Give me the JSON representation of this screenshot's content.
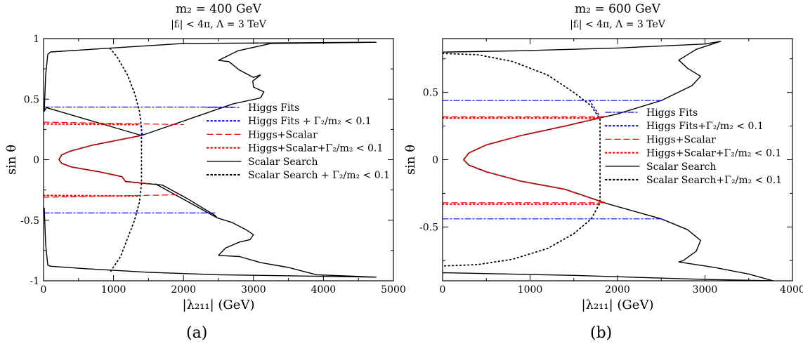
{
  "figure": {
    "caption_a": "(a)",
    "caption_b": "(b)"
  },
  "chart_data": [
    {
      "id": "a",
      "type": "line",
      "title_main": "m₂ = 400 GeV",
      "title_sub": "|fᵢ| < 4π, Λ = 3 TeV",
      "xlabel": "|λ₂₁₁| (GeV)",
      "ylabel": "sin θ",
      "xlim": [
        0,
        5000
      ],
      "ylim": [
        -1,
        1
      ],
      "xticks": [
        "0",
        "1000",
        "2000",
        "3000",
        "4000",
        "5000"
      ],
      "yticks": [
        "-1",
        "-0.5",
        "0",
        "0.5",
        "1"
      ],
      "grid": false,
      "legend_position": "right",
      "legend": [
        {
          "label": "Higgs Fits",
          "style": "dashdot",
          "color": "#0000ff"
        },
        {
          "label": "Higgs Fits + Γ₂/m₂ < 0.1",
          "style": "dotted",
          "color": "#0000ff"
        },
        {
          "label": "Higgs+Scalar",
          "style": "dashed",
          "color": "#ff0000"
        },
        {
          "label": "Higgs+Scalar+Γ₂/m₂ < 0.1",
          "style": "dotted",
          "color": "#ff0000"
        },
        {
          "label": "Scalar Search",
          "style": "solid",
          "color": "#000000"
        },
        {
          "label": "Scalar Search + Γ₂/m₂ < 0.1",
          "style": "dotted",
          "color": "#000000"
        }
      ],
      "series": [
        {
          "name": "Scalar Search",
          "style": "solid",
          "color": "#000000",
          "width": 1.4,
          "points": [
            [
              4750,
              0.97
            ],
            [
              2000,
              0.96
            ],
            [
              100,
              0.89
            ],
            [
              60,
              0.87
            ],
            [
              30,
              0.7
            ],
            [
              10,
              0.4
            ],
            [
              40,
              0.43
            ],
            [
              1400,
              0.2
            ],
            [
              700,
              0.12
            ],
            [
              380,
              0.07
            ],
            [
              260,
              0.04
            ],
            [
              220,
              0.0
            ],
            [
              260,
              -0.03
            ],
            [
              400,
              -0.06
            ],
            [
              800,
              -0.1
            ],
            [
              1120,
              -0.14
            ],
            [
              1170,
              -0.18
            ],
            [
              1700,
              -0.21
            ],
            [
              2050,
              -0.32
            ],
            [
              2450,
              -0.46
            ],
            [
              2480,
              -0.48
            ],
            [
              1600,
              -0.2
            ]
          ]
        },
        {
          "name": "Scalar Search (outer)",
          "style": "solid",
          "color": "#000000",
          "width": 1.4,
          "points": [
            [
              4750,
              0.97
            ],
            [
              3250,
              0.96
            ],
            [
              2780,
              0.9
            ],
            [
              2500,
              0.82
            ],
            [
              2650,
              0.81
            ],
            [
              2800,
              0.74
            ],
            [
              3000,
              0.68
            ],
            [
              3100,
              0.7
            ],
            [
              2990,
              0.65
            ],
            [
              3000,
              0.6
            ],
            [
              3150,
              0.56
            ],
            [
              3100,
              0.51
            ],
            [
              2700,
              0.46
            ],
            [
              1500,
              0.22
            ],
            [
              1400,
              0.2
            ]
          ]
        },
        {
          "name": "Scalar Search (outer lower)",
          "style": "solid",
          "color": "#000000",
          "width": 1.4,
          "points": [
            [
              2480,
              -0.48
            ],
            [
              2700,
              -0.52
            ],
            [
              2900,
              -0.58
            ],
            [
              3000,
              -0.62
            ],
            [
              2950,
              -0.66
            ],
            [
              2800,
              -0.68
            ],
            [
              2600,
              -0.73
            ],
            [
              2500,
              -0.79
            ],
            [
              2800,
              -0.8
            ],
            [
              3100,
              -0.85
            ],
            [
              3500,
              -0.89
            ],
            [
              3900,
              -0.95
            ],
            [
              4750,
              -0.97
            ]
          ]
        },
        {
          "name": "Scalar Search (bottom)",
          "style": "solid",
          "color": "#000000",
          "width": 1.4,
          "points": [
            [
              10,
              -0.4
            ],
            [
              30,
              -0.7
            ],
            [
              60,
              -0.87
            ],
            [
              100,
              -0.88
            ],
            [
              600,
              -0.9
            ],
            [
              1500,
              -0.93
            ],
            [
              2500,
              -0.95
            ],
            [
              4750,
              -0.97
            ]
          ]
        },
        {
          "name": "Scalar Search + Γ₂/m₂ < 0.1",
          "style": "dotted",
          "color": "#000000",
          "width": 1.8,
          "points": [
            [
              950,
              0.92
            ],
            [
              1050,
              0.85
            ],
            [
              1200,
              0.7
            ],
            [
              1300,
              0.55
            ],
            [
              1370,
              0.4
            ],
            [
              1400,
              0.27
            ],
            [
              1400,
              -0.2
            ],
            [
              1370,
              -0.35
            ],
            [
              1300,
              -0.5
            ],
            [
              1200,
              -0.65
            ],
            [
              1100,
              -0.8
            ],
            [
              950,
              -0.93
            ]
          ]
        },
        {
          "name": "Higgs Fits",
          "style": "dashdot",
          "color": "#0000ff",
          "width": 1.2,
          "points": [
            [
              0,
              0.435
            ],
            [
              2700,
              0.435
            ]
          ]
        },
        {
          "name": "Higgs Fits (lower)",
          "style": "dashdot",
          "color": "#0000ff",
          "width": 1.2,
          "points": [
            [
              0,
              -0.44
            ],
            [
              2450,
              -0.44
            ]
          ]
        },
        {
          "name": "Higgs Fits + Γ₂/m₂ < 0.1",
          "style": "dotted",
          "color": "#0000ff",
          "width": 1.8,
          "points": [
            [
              1390,
              0.28
            ],
            [
              1410,
              0.22
            ],
            [
              1420,
              0.19
            ]
          ]
        },
        {
          "name": "Higgs+Scalar",
          "style": "dashed",
          "color": "#ff0000",
          "width": 1.2,
          "points": [
            [
              0,
              0.31
            ],
            [
              2000,
              0.29
            ]
          ]
        },
        {
          "name": "Higgs+Scalar (lower)",
          "style": "dashed",
          "color": "#ff0000",
          "width": 1.2,
          "points": [
            [
              0,
              -0.31
            ],
            [
              1900,
              -0.29
            ]
          ]
        },
        {
          "name": "Higgs+Scalar+Γ₂/m₂ < 0.1",
          "style": "dotted",
          "color": "#ff0000",
          "width": 2.2,
          "points": [
            [
              0,
              0.295
            ],
            [
              1350,
              0.29
            ]
          ]
        },
        {
          "name": "Higgs+Scalar+Γ₂/m₂ < 0.1 (lower)",
          "style": "dotted",
          "color": "#ff0000",
          "width": 2.2,
          "points": [
            [
              0,
              -0.295
            ],
            [
              1350,
              -0.3
            ]
          ]
        },
        {
          "name": "Higgs+Scalar+Γ₂/m₂ < 0.1 (curve)",
          "style": "dotted",
          "color": "#ff0000",
          "width": 2.0,
          "points": [
            [
              1400,
              0.2
            ],
            [
              700,
              0.12
            ],
            [
              380,
              0.07
            ],
            [
              260,
              0.04
            ],
            [
              220,
              0.0
            ],
            [
              260,
              -0.03
            ],
            [
              400,
              -0.06
            ],
            [
              800,
              -0.1
            ],
            [
              1120,
              -0.14
            ],
            [
              1170,
              -0.18
            ],
            [
              1500,
              -0.2
            ]
          ]
        }
      ]
    },
    {
      "id": "b",
      "type": "line",
      "title_main": "m₂ = 600 GeV",
      "title_sub": "|fᵢ| < 4π, Λ = 3 TeV",
      "xlabel": "|λ₂₁₁| (GeV)",
      "ylabel": "sin θ",
      "xlim": [
        0,
        4000
      ],
      "ylim": [
        -0.9,
        0.9
      ],
      "xticks": [
        "0",
        "1000",
        "2000",
        "3000",
        "4000"
      ],
      "yticks": [
        "-0.5",
        "0",
        "0.5"
      ],
      "grid": false,
      "legend_position": "right",
      "legend": [
        {
          "label": "Higgs Fits",
          "style": "dashdot",
          "color": "#0000ff"
        },
        {
          "label": "Higgs Fits+Γ₂/m₂ < 0.1",
          "style": "dotted",
          "color": "#0000ff"
        },
        {
          "label": "Higgs+Scalar",
          "style": "dashed",
          "color": "#ff0000"
        },
        {
          "label": "Higgs+Scalar+Γ₂/m₂ < 0.1",
          "style": "dotted",
          "color": "#ff0000"
        },
        {
          "label": "Scalar Search",
          "style": "solid",
          "color": "#000000"
        },
        {
          "label": "Scalar Search+Γ₂/m₂ < 0.1",
          "style": "dotted",
          "color": "#000000"
        }
      ],
      "series": [
        {
          "name": "Scalar Search",
          "style": "solid",
          "color": "#000000",
          "width": 1.4,
          "points": [
            [
              0,
              0.8
            ],
            [
              900,
              0.81
            ],
            [
              2000,
              0.83
            ],
            [
              3000,
              0.86
            ],
            [
              3180,
              0.88
            ],
            [
              2900,
              0.82
            ],
            [
              2700,
              0.74
            ],
            [
              2800,
              0.68
            ],
            [
              2900,
              0.64
            ],
            [
              2950,
              0.62
            ],
            [
              2850,
              0.55
            ],
            [
              2500,
              0.44
            ],
            [
              2000,
              0.34
            ],
            [
              1400,
              0.25
            ],
            [
              900,
              0.18
            ],
            [
              500,
              0.11
            ],
            [
              300,
              0.05
            ],
            [
              240,
              0.0
            ],
            [
              300,
              -0.04
            ],
            [
              500,
              -0.09
            ],
            [
              900,
              -0.16
            ],
            [
              1400,
              -0.22
            ],
            [
              1900,
              -0.33
            ],
            [
              2500,
              -0.44
            ],
            [
              2800,
              -0.52
            ],
            [
              2950,
              -0.6
            ],
            [
              2900,
              -0.68
            ],
            [
              2750,
              -0.75
            ],
            [
              2700,
              -0.76
            ],
            [
              3100,
              -0.8
            ],
            [
              3500,
              -0.85
            ],
            [
              3780,
              -0.9
            ],
            [
              3000,
              -0.89
            ],
            [
              1500,
              -0.86
            ],
            [
              0,
              -0.84
            ]
          ]
        },
        {
          "name": "Scalar Search+Γ₂/m₂ < 0.1",
          "style": "dotted",
          "color": "#000000",
          "width": 1.8,
          "points": [
            [
              0,
              0.79
            ],
            [
              400,
              0.78
            ],
            [
              800,
              0.73
            ],
            [
              1200,
              0.63
            ],
            [
              1500,
              0.5
            ],
            [
              1700,
              0.4
            ],
            [
              1800,
              0.3
            ],
            [
              1800,
              -0.32
            ],
            [
              1700,
              -0.44
            ],
            [
              1500,
              -0.55
            ],
            [
              1200,
              -0.66
            ],
            [
              800,
              -0.74
            ],
            [
              400,
              -0.78
            ],
            [
              0,
              -0.79
            ]
          ]
        },
        {
          "name": "Higgs Fits",
          "style": "dashdot",
          "color": "#0000ff",
          "width": 1.2,
          "points": [
            [
              0,
              0.44
            ],
            [
              2500,
              0.44
            ]
          ]
        },
        {
          "name": "Higgs Fits (lower)",
          "style": "dashdot",
          "color": "#0000ff",
          "width": 1.2,
          "points": [
            [
              0,
              -0.44
            ],
            [
              2500,
              -0.44
            ]
          ]
        },
        {
          "name": "Higgs Fits+Γ₂/m₂ < 0.1",
          "style": "dotted",
          "color": "#0000ff",
          "width": 1.8,
          "points": [
            [
              1680,
              0.44
            ],
            [
              1740,
              0.38
            ],
            [
              1790,
              0.33
            ]
          ]
        },
        {
          "name": "Higgs+Scalar",
          "style": "dashed",
          "color": "#ff0000",
          "width": 1.2,
          "points": [
            [
              0,
              0.32
            ],
            [
              1850,
              0.32
            ]
          ]
        },
        {
          "name": "Higgs+Scalar (lower)",
          "style": "dashed",
          "color": "#ff0000",
          "width": 1.2,
          "points": [
            [
              0,
              -0.32
            ],
            [
              1850,
              -0.32
            ]
          ]
        },
        {
          "name": "Higgs+Scalar+Γ₂/m₂ < 0.1",
          "style": "dotted",
          "color": "#ff0000",
          "width": 2.2,
          "points": [
            [
              0,
              0.31
            ],
            [
              1800,
              0.31
            ]
          ]
        },
        {
          "name": "Higgs+Scalar+Γ₂/m₂ < 0.1 (lower)",
          "style": "dotted",
          "color": "#ff0000",
          "width": 2.2,
          "points": [
            [
              0,
              -0.33
            ],
            [
              1800,
              -0.33
            ]
          ]
        },
        {
          "name": "Higgs+Scalar+Γ₂/m₂ < 0.1 (curve)",
          "style": "dotted",
          "color": "#ff0000",
          "width": 2.0,
          "points": [
            [
              1850,
              0.32
            ],
            [
              1400,
              0.25
            ],
            [
              900,
              0.18
            ],
            [
              500,
              0.11
            ],
            [
              300,
              0.05
            ],
            [
              240,
              0.0
            ],
            [
              300,
              -0.04
            ],
            [
              500,
              -0.09
            ],
            [
              900,
              -0.16
            ],
            [
              1400,
              -0.22
            ],
            [
              1850,
              -0.32
            ]
          ]
        }
      ]
    }
  ]
}
